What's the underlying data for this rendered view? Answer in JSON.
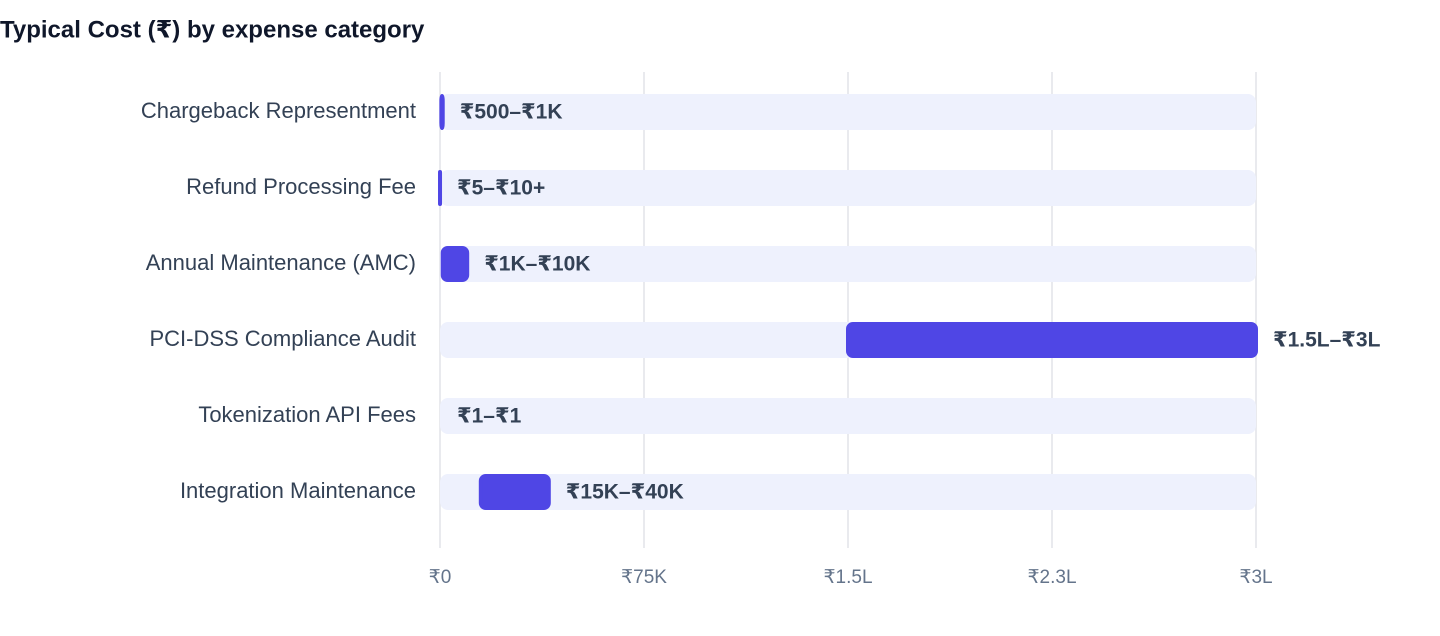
{
  "chart_data": {
    "type": "range-bar",
    "title": "Typical Cost (₹) by expense category",
    "categories": [
      "Chargeback Representment",
      "Refund Processing Fee",
      "Annual Maintenance (AMC)",
      "PCI-DSS Compliance Audit",
      "Tokenization API Fees",
      "Integration Maintenance"
    ],
    "low": [
      500,
      5,
      1000,
      150000,
      1,
      15000
    ],
    "high": [
      1000,
      10,
      10000,
      300000,
      1,
      40000
    ],
    "value_labels": [
      "₹500–₹1K",
      "₹5–₹10+",
      "₹1K–₹10K",
      "₹1.5L–₹3L",
      "₹1–₹1",
      "₹15K–₹40K"
    ],
    "color": "#4f46e5",
    "track_color": "#eef1fd",
    "xlim": [
      0,
      300000
    ],
    "xticks": [
      {
        "value": 0,
        "label": "₹0"
      },
      {
        "value": 75000,
        "label": "₹75K"
      },
      {
        "value": 150000,
        "label": "₹1.5L"
      },
      {
        "value": 225000,
        "label": "₹2.3L"
      },
      {
        "value": 300000,
        "label": "₹3L"
      }
    ],
    "grid": true
  }
}
